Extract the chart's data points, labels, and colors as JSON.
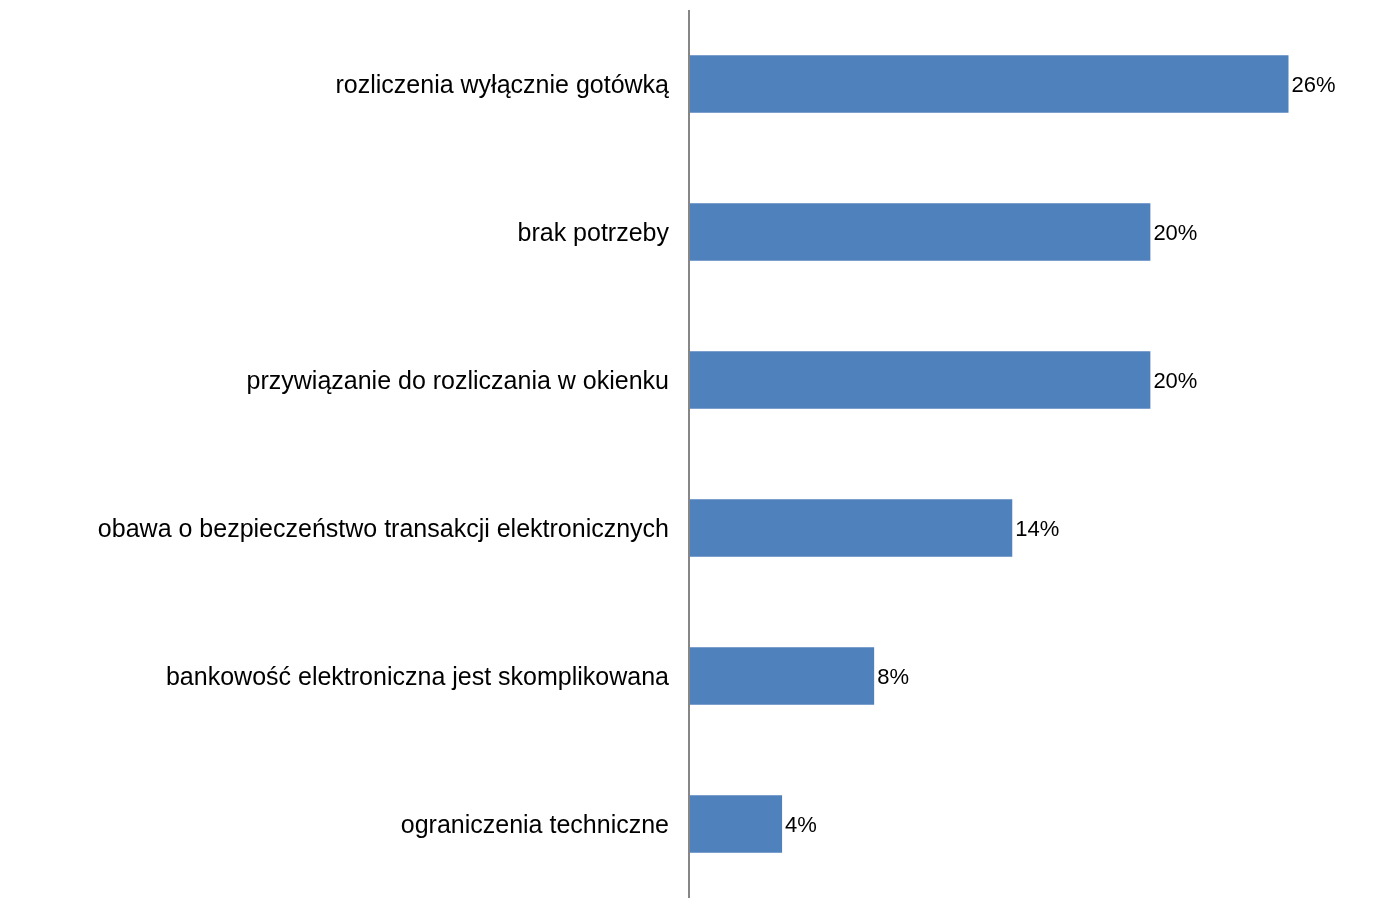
{
  "chart_data": {
    "type": "bar",
    "orientation": "horizontal",
    "categories": [
      "rozliczenia wyłącznie gotówką",
      "brak potrzeby",
      "przywiązanie do rozliczania w okienku",
      "obawa o bezpieczeństwo transakcji elektronicznych",
      "bankowość elektroniczna jest skomplikowana",
      "ograniczenia techniczne"
    ],
    "values": [
      26,
      20,
      20,
      14,
      8,
      4
    ],
    "value_labels": [
      "26%",
      "20%",
      "20%",
      "14%",
      "8%",
      "4%"
    ],
    "color": "#4f81bd",
    "tick_labels": "y"
  }
}
